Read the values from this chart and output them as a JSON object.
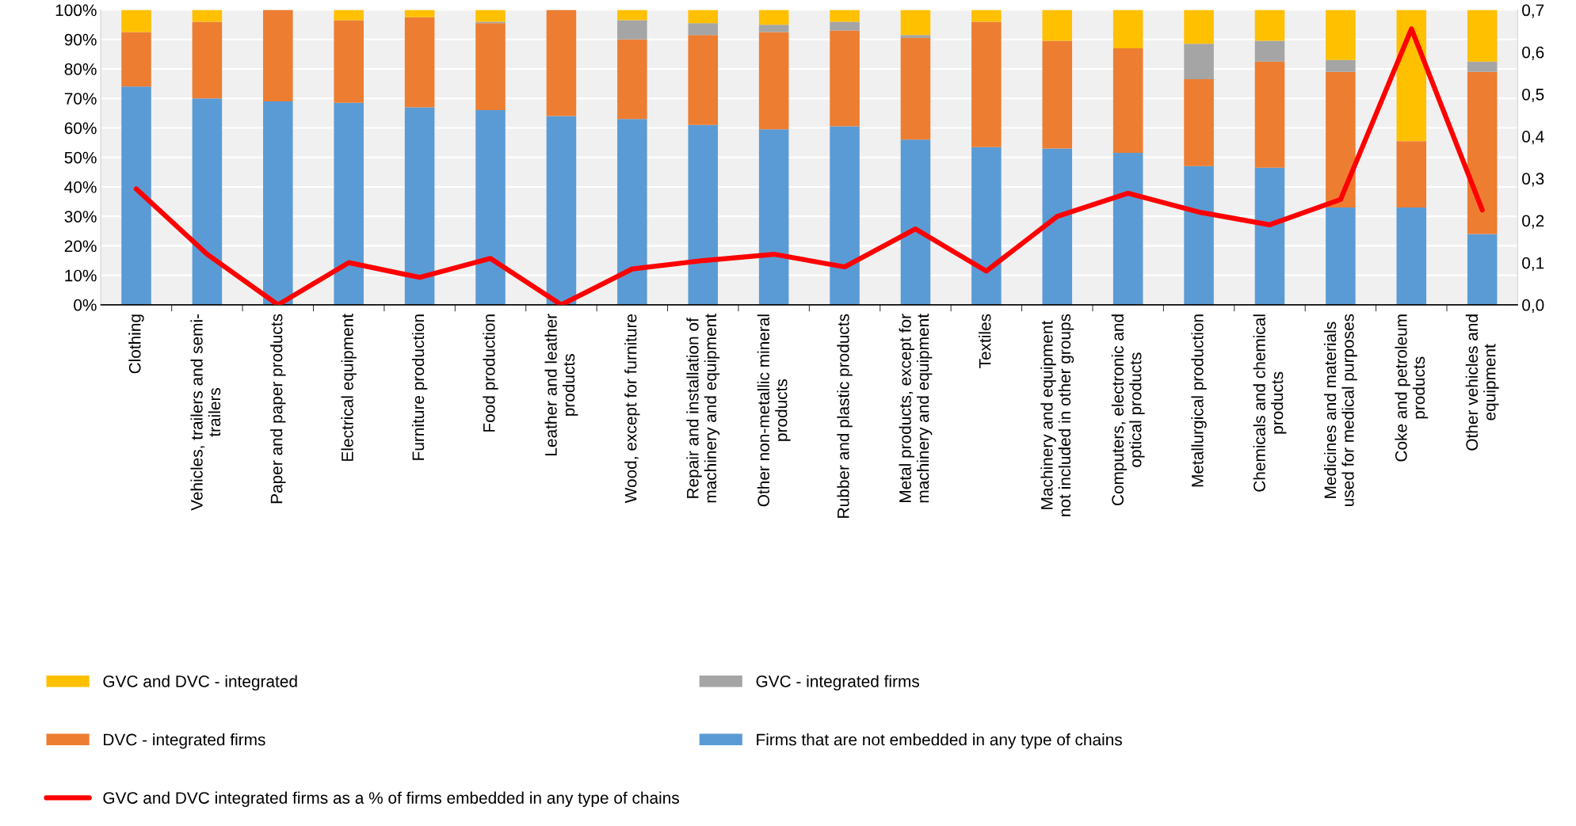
{
  "chart_data": {
    "type": "bar",
    "stacked": true,
    "categories": [
      "Clothing",
      "Vehicles, trailers and semi-\ntrailers",
      "Paper and paper products",
      "Electrical equipment",
      "Furniture production",
      "Food production",
      "Leather and leather\nproducts",
      "Wood, except for furniture",
      "Repair and installation of\nmachinery and equipment",
      "Other non-metallic mineral\nproducts",
      "Rubber and plastic products",
      "Metal products, except for\nmachinery and equipment",
      "Textiles",
      "Machinery and equipment\nnot included in other groups",
      "Computers, electronic and\noptical products",
      "Metallurgical production",
      "Chemicals and chemical\nproducts",
      "Medicines and materials\nused for medical purposes",
      "Coke and petroleum\nproducts",
      "Other vehicles and\nequipment"
    ],
    "series": [
      {
        "name": "Firms that are not embedded in any type of chains",
        "color": "#5b9bd5",
        "values": [
          74,
          70,
          69,
          68.5,
          67,
          66,
          64,
          63,
          61,
          59.5,
          60.5,
          56,
          53.5,
          53,
          51.5,
          47,
          46.5,
          33,
          33,
          24
        ]
      },
      {
        "name": "DVC - integrated firms",
        "color": "#ed7d31",
        "values": [
          18.5,
          26,
          31,
          28,
          30.5,
          29.5,
          36,
          27,
          30.5,
          33,
          32.5,
          34.5,
          42.5,
          36.5,
          35.5,
          29.5,
          36,
          46,
          22.5,
          55
        ]
      },
      {
        "name": "GVC - integrated firms",
        "color": "#a5a5a5",
        "values": [
          0,
          0,
          0,
          0,
          0,
          0.5,
          0,
          6.5,
          4,
          2.5,
          3,
          1,
          0,
          0,
          0,
          12,
          7,
          4,
          0,
          3.5
        ]
      },
      {
        "name": "GVC and DVC - integrated",
        "color": "#ffc000",
        "values": [
          7.5,
          4,
          0,
          3.5,
          2.5,
          4,
          0,
          3.5,
          4.5,
          5,
          4,
          8.5,
          4,
          10.5,
          13,
          11.5,
          10.5,
          17,
          44.5,
          17.5
        ]
      },
      {
        "name": "GVC and DVC integrated firms as a % of firms embedded in any type of chains",
        "type": "line",
        "axis": "y2",
        "color": "#ff0000",
        "values": [
          0.275,
          0.12,
          0,
          0.1,
          0.065,
          0.11,
          0,
          0.085,
          0.105,
          0.12,
          0.09,
          0.18,
          0.08,
          0.21,
          0.265,
          0.22,
          0.19,
          0.25,
          0.655,
          0.225
        ]
      }
    ],
    "ylim": [
      0,
      100
    ],
    "yticks": [
      {
        "value": 0,
        "label": "0%"
      },
      {
        "value": 10,
        "label": "10%"
      },
      {
        "value": 20,
        "label": "20%"
      },
      {
        "value": 30,
        "label": "30%"
      },
      {
        "value": 40,
        "label": "40%"
      },
      {
        "value": 50,
        "label": "50%"
      },
      {
        "value": 60,
        "label": "60%"
      },
      {
        "value": 70,
        "label": "70%"
      },
      {
        "value": 80,
        "label": "80%"
      },
      {
        "value": 90,
        "label": "90%"
      },
      {
        "value": 100,
        "label": "100%"
      }
    ],
    "y2lim": [
      0,
      0.7
    ],
    "y2ticks": [
      {
        "value": 0,
        "label": "0,0"
      },
      {
        "value": 0.1,
        "label": "0,1"
      },
      {
        "value": 0.2,
        "label": "0,2"
      },
      {
        "value": 0.3,
        "label": "0,3"
      },
      {
        "value": 0.4,
        "label": "0,4"
      },
      {
        "value": 0.5,
        "label": "0,5"
      },
      {
        "value": 0.6,
        "label": "0,6"
      },
      {
        "value": 0.7,
        "label": "0,7"
      }
    ],
    "grid": "y",
    "legend": "bottom",
    "line_style": "solid"
  }
}
